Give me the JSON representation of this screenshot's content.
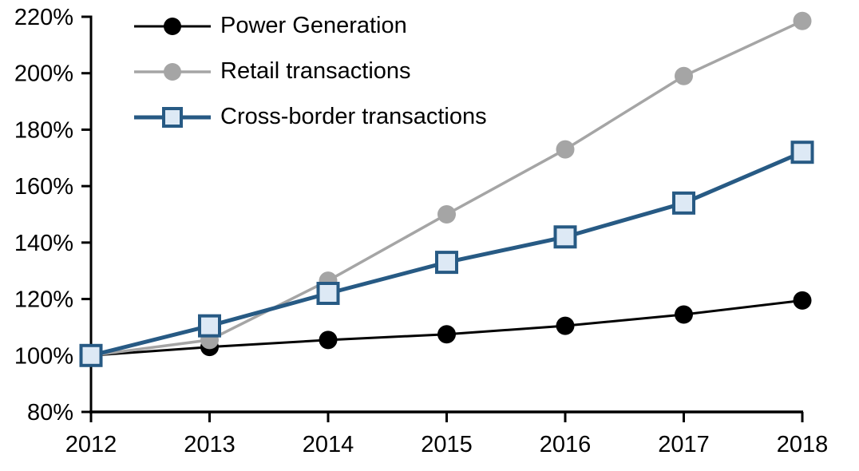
{
  "chart_data": {
    "type": "line",
    "title": "",
    "categories": [
      "2012",
      "2013",
      "2014",
      "2015",
      "2016",
      "2017",
      "2018"
    ],
    "series": [
      {
        "name": "Power Generation",
        "values": [
          100,
          103,
          105.5,
          107.5,
          110.5,
          114.5,
          119.5
        ],
        "color": "#000000",
        "marker": "circle",
        "marker_fill": "#000000",
        "line_width": 3
      },
      {
        "name": "Retail transactions",
        "values": [
          100,
          105.5,
          126.5,
          150,
          173,
          199,
          218.5
        ],
        "color": "#a5a5a5",
        "marker": "circle",
        "marker_fill": "#a5a5a5",
        "line_width": 3.5
      },
      {
        "name": "Cross-border transactions",
        "values": [
          100,
          110.5,
          122,
          133,
          142,
          154,
          172
        ],
        "color": "#275a84",
        "marker": "square",
        "marker_fill": "#dde9f5",
        "line_width": 5
      }
    ],
    "xlabel": "",
    "ylabel": "",
    "ylim": [
      80,
      220
    ],
    "y_axis": {
      "min": 80,
      "max": 220,
      "step": 20,
      "tick_labels": [
        "80%",
        "100%",
        "120%",
        "140%",
        "160%",
        "180%",
        "200%",
        "220%"
      ],
      "format": "percent"
    },
    "x_axis": {
      "tick_labels": [
        "2012",
        "2013",
        "2014",
        "2015",
        "2016",
        "2017",
        "2018"
      ]
    },
    "legend": {
      "position": "top-left",
      "items": [
        "Power Generation",
        "Retail transactions",
        "Cross-border transactions"
      ]
    },
    "grid": false,
    "axis_color": "#000000",
    "background_color": "#ffffff",
    "tick_font_size": 29
  }
}
